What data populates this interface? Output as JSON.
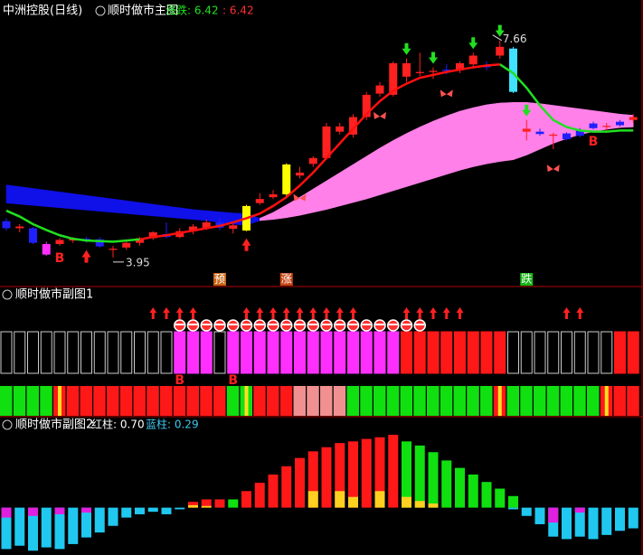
{
  "chart_data": [
    {
      "type": "candlestick",
      "title": "中洲控股(日线)",
      "subtitle": "顺时做市主图",
      "change_text": "涨跌: 6.42",
      "change_text2": ": 6.42",
      "ylim": [
        3.5,
        8.35
      ],
      "open": [
        4.57,
        4.45,
        4.45,
        4.18,
        4.18,
        4.24,
        4.27,
        4.26,
        4.1,
        4.12,
        4.2,
        4.28,
        4.35,
        4.3,
        4.4,
        4.45,
        4.55,
        4.44,
        4.41,
        4.88,
        4.98,
        5.03,
        5.35,
        5.55,
        5.65,
        6.1,
        6.05,
        6.35,
        6.75,
        6.73,
        7.27,
        7.1,
        7.12,
        7.14,
        7.15,
        7.25,
        7.22,
        7.4,
        7.52,
        6.15,
        6.1,
        6.05,
        6.07,
        6.13,
        6.24,
        6.18,
        6.27,
        6.3
      ],
      "high": [
        4.62,
        4.52,
        4.47,
        4.22,
        4.28,
        4.3,
        4.3,
        4.3,
        4.15,
        4.22,
        4.3,
        4.4,
        4.55,
        4.45,
        4.52,
        4.6,
        4.62,
        4.52,
        4.85,
        5.05,
        5.1,
        5.56,
        5.5,
        5.68,
        6.25,
        6.25,
        6.4,
        6.78,
        6.95,
        7.3,
        7.35,
        7.45,
        7.2,
        7.25,
        7.3,
        7.45,
        7.3,
        7.66,
        7.55,
        6.3,
        6.15,
        6.08,
        6.09,
        6.16,
        6.27,
        6.25,
        6.3,
        6.4
      ],
      "low": [
        4.41,
        4.38,
        4.18,
        3.98,
        4.15,
        4.2,
        4.2,
        4.12,
        3.95,
        4.08,
        4.15,
        4.25,
        4.28,
        4.28,
        4.35,
        4.42,
        4.42,
        4.36,
        4.4,
        4.85,
        4.95,
        5.0,
        5.3,
        5.5,
        5.62,
        6.05,
        6.0,
        6.3,
        6.7,
        6.7,
        6.95,
        7.05,
        7.0,
        7.08,
        7.1,
        7.2,
        7.15,
        7.35,
        6.76,
        5.95,
        6.03,
        5.8,
        5.95,
        6.0,
        6.14,
        6.12,
        6.19,
        6.25
      ],
      "close": [
        4.45,
        4.48,
        4.2,
        4.0,
        4.25,
        4.27,
        4.23,
        4.14,
        4.08,
        4.2,
        4.28,
        4.38,
        4.3,
        4.4,
        4.48,
        4.55,
        4.46,
        4.5,
        4.83,
        4.95,
        5.03,
        5.54,
        5.4,
        5.65,
        6.19,
        6.19,
        6.35,
        6.73,
        6.89,
        7.27,
        7.04,
        7.12,
        7.14,
        7.16,
        7.27,
        7.4,
        7.2,
        7.55,
        6.78,
        6.1,
        6.06,
        6.03,
        5.97,
        6.03,
        6.16,
        6.2,
        6.21,
        6.35
      ],
      "candle_colors": [
        "#2020ff",
        "#ff2020",
        "#2020ff",
        "#ff30ff",
        "#ff2020",
        "#ff2020",
        "#2020ff",
        "#2020ff",
        "#ff2020",
        "#ff2020",
        "#ff2020",
        "#ff2020",
        "#2020ff",
        "#ff2020",
        "#ff2020",
        "#ff2020",
        "#2020ff",
        "#ff2020",
        "#ffff00",
        "#ff2020",
        "#ff2020",
        "#ffff00",
        "#ff2020",
        "#ff2020",
        "#ff2020",
        "#ff2020",
        "#ff2020",
        "#ff2020",
        "#ff2020",
        "#ff2020",
        "#ff2020",
        "#ff2020",
        "#ff2020",
        "#2020ff",
        "#ff2020",
        "#ff2020",
        "#2020ff",
        "#ff2020",
        "#40e0ff",
        "#ff2020",
        "#2020ff",
        "#ff2020",
        "#2020ff",
        "#2020ff",
        "#2020ff",
        "#ff2020",
        "#2020ff",
        "#ff2020"
      ],
      "series": [
        {
          "name": "ma_green",
          "color": "#20e020",
          "values": [
            4.75,
            4.65,
            4.52,
            4.42,
            4.33,
            4.27,
            4.24,
            4.23,
            4.22,
            4.24,
            4.26,
            null,
            null,
            null,
            null,
            null,
            null,
            null,
            null,
            null,
            null,
            null,
            null,
            null,
            null,
            null,
            null,
            null,
            null,
            null,
            null,
            null,
            null,
            null,
            null,
            null,
            null,
            7.25,
            7.1,
            6.85,
            6.55,
            6.3,
            6.18,
            6.12,
            6.1,
            6.1,
            6.12,
            6.12
          ]
        },
        {
          "name": "ma_red",
          "color": "#ff1010",
          "values": [
            null,
            null,
            null,
            null,
            null,
            null,
            null,
            null,
            null,
            null,
            4.26,
            4.3,
            4.33,
            4.37,
            4.41,
            4.45,
            4.49,
            4.55,
            4.62,
            4.7,
            4.83,
            4.98,
            5.18,
            5.4,
            5.65,
            5.9,
            6.15,
            6.4,
            6.62,
            6.8,
            6.92,
            7.02,
            7.07,
            7.12,
            7.16,
            7.2,
            7.23,
            7.25,
            null,
            null,
            null,
            null,
            null,
            null,
            null,
            null,
            null,
            null
          ]
        }
      ],
      "cloud_upper": [
        5.19,
        5.16,
        5.13,
        5.1,
        5.07,
        5.04,
        5.01,
        4.98,
        4.95,
        4.92,
        4.89,
        4.86,
        4.83,
        4.8,
        4.77,
        4.75,
        4.73,
        4.71,
        4.7,
        4.62,
        4.72,
        4.85,
        4.98,
        5.12,
        5.26,
        5.4,
        5.54,
        5.68,
        5.82,
        5.95,
        6.07,
        6.18,
        6.28,
        6.37,
        6.45,
        6.51,
        6.56,
        6.59,
        6.6,
        6.6,
        6.58,
        6.55,
        6.52,
        6.49,
        6.46,
        6.43,
        6.4,
        6.38
      ],
      "cloud_lower": [
        4.88,
        4.86,
        4.84,
        4.82,
        4.8,
        4.78,
        4.76,
        4.74,
        4.72,
        4.7,
        4.68,
        4.66,
        4.64,
        4.62,
        4.6,
        4.58,
        4.55,
        4.52,
        4.5,
        4.58,
        4.6,
        4.63,
        4.67,
        4.72,
        4.77,
        4.83,
        4.89,
        4.95,
        5.02,
        5.09,
        5.16,
        5.23,
        5.3,
        5.37,
        5.44,
        5.5,
        5.55,
        5.59,
        5.62,
        5.7,
        5.8,
        5.9,
        5.98,
        6.05,
        6.1,
        6.14,
        6.17,
        6.18
      ],
      "cloud_colors": [
        "#1010e8",
        "#1010e8",
        "#1010e8",
        "#1010e8",
        "#1010e8",
        "#1010e8",
        "#1010e8",
        "#1010e8",
        "#1010e8",
        "#1010e8",
        "#1010e8",
        "#1010e8",
        "#1010e8",
        "#1010e8",
        "#1010e8",
        "#1010e8",
        "#1010e8",
        "#1010e8",
        "#1010e8",
        "#ff80e8",
        "#ff80e8",
        "#ff80e8",
        "#ff80e8",
        "#ff80e8",
        "#ff80e8",
        "#ff80e8",
        "#ff80e8",
        "#ff80e8",
        "#ff80e8",
        "#ff80e8",
        "#ff80e8",
        "#ff80e8",
        "#ff80e8",
        "#ff80e8",
        "#ff80e8",
        "#ff80e8",
        "#ff80e8",
        "#ff80e8",
        "#ff80e8",
        "#ff80e8",
        "#ff80e8",
        "#ff80e8",
        "#ff80e8",
        "#ff80e8",
        "#ff80e8",
        "#ff80e8",
        "#ff80e8",
        "#ff80e8"
      ],
      "high_label_day": 37,
      "low_label_day": 8,
      "red_arrow_days": [
        6,
        18
      ],
      "green_arrow_days": [
        30,
        32,
        35,
        37,
        39
      ],
      "butterfly_days": [
        22,
        28,
        33,
        41
      ],
      "b_labels": [
        {
          "day": 4,
          "text": "B"
        },
        {
          "day": 44,
          "text": "B"
        }
      ],
      "bottom_labels": [
        {
          "day": 16,
          "text": "预",
          "color": "#c86414"
        },
        {
          "day": 21,
          "text": "涨",
          "color": "#c84614"
        },
        {
          "day": 39,
          "text": "跌",
          "color": "#14b414"
        }
      ]
    },
    {
      "type": "signal_rows",
      "title": "顺时做市副图1",
      "top_states": [
        "hollow",
        "hollow",
        "hollow",
        "hollow",
        "hollow",
        "hollow",
        "hollow",
        "hollow",
        "hollow",
        "hollow",
        "hollow",
        "hollow",
        "hollow",
        "magenta",
        "magenta",
        "magenta",
        "hollow",
        "magenta",
        "magenta",
        "magenta",
        "magenta",
        "magenta",
        "magenta",
        "magenta",
        "magenta",
        "magenta",
        "magenta",
        "magenta",
        "magenta",
        "magenta",
        "red",
        "red",
        "red",
        "red",
        "red",
        "red",
        "red",
        "red",
        "hollow",
        "hollow",
        "hollow",
        "hollow",
        "hollow",
        "hollow",
        "hollow",
        "hollow",
        "red",
        "red"
      ],
      "bottom_states": [
        "green",
        "green",
        "green",
        "green",
        "stripe_red",
        "red",
        "red",
        "red",
        "red",
        "red",
        "red",
        "red",
        "red",
        "red",
        "red",
        "red",
        "red",
        "green",
        "stripe_green",
        "red",
        "red",
        "red",
        "pink",
        "pink",
        "pink",
        "pink",
        "green",
        "green",
        "green",
        "green",
        "green",
        "green",
        "green",
        "green",
        "green",
        "green",
        "green",
        "stripe_red",
        "green",
        "green",
        "green",
        "green",
        "green",
        "green",
        "green",
        "stripe_red",
        "red",
        "red"
      ],
      "state_colors": {
        "hollow": "#000000",
        "magenta": "#ff30ff",
        "red": "#ff1818",
        "green": "#10e010",
        "pink": "#f09090",
        "stripe_red": "#ff1818",
        "stripe_green": "#10e010"
      },
      "arrow_days": [
        11,
        12,
        13,
        14,
        18,
        19,
        20,
        21,
        22,
        23,
        24,
        25,
        26,
        30,
        31,
        32,
        33,
        34,
        42,
        43
      ],
      "ball_days": [
        13,
        14,
        15,
        16,
        17,
        18,
        19,
        20,
        21,
        22,
        23,
        24,
        25,
        26,
        27,
        28,
        29,
        30,
        31
      ],
      "b_labels": [
        {
          "day": 13,
          "text": "B"
        },
        {
          "day": 17,
          "text": "B"
        }
      ]
    },
    {
      "type": "bar",
      "title": "顺时做市副图2",
      "legend": [
        "红柱: 0.70",
        "蓝柱: 0.29"
      ],
      "ylim": [
        -0.55,
        1.0
      ],
      "series": [
        {
          "name": "红柱",
          "values": [
            0,
            0,
            0,
            0,
            0,
            0,
            0,
            0,
            0,
            0,
            0,
            0,
            0,
            0,
            0.07,
            0.1,
            0.1,
            0.1,
            0.2,
            0.3,
            0.4,
            0.5,
            0.6,
            0.68,
            0.73,
            0.78,
            0.8,
            0.83,
            0.85,
            0.88,
            0.8,
            0.75,
            0.67,
            0.57,
            0.48,
            0.4,
            0.31,
            0.23,
            0.14,
            0,
            0,
            0,
            0,
            0,
            0,
            0,
            0,
            0
          ],
          "colors": [
            "#ff1818",
            "#ff1818",
            "#ff1818",
            "#ff1818",
            "#ff1818",
            "#ff1818",
            "#ff1818",
            "#ff1818",
            "#ff1818",
            "#ff1818",
            "#ff1818",
            "#ff1818",
            "#ff1818",
            "#ff1818",
            "#ff1818",
            "#ff1818",
            "#ff1818",
            "#10e010",
            "#ff1818",
            "#ff1818",
            "#ff1818",
            "#ff1818",
            "#ff1818",
            "#ff1818",
            "#ff1818",
            "#ff1818",
            "#ff1818",
            "#ff1818",
            "#ff1818",
            "#ff1818",
            "#10e010",
            "#10e010",
            "#10e010",
            "#10e010",
            "#10e010",
            "#10e010",
            "#10e010",
            "#10e010",
            "#10e010",
            "#10e010",
            "#10e010",
            "#10e010",
            "#10e010",
            "#10e010",
            "#10e010",
            "#10e010",
            "#10e010",
            "#10e010"
          ]
        },
        {
          "name": "yellow",
          "color": "#ffd020",
          "values": [
            0,
            0,
            0,
            0,
            0,
            0,
            0,
            0,
            0,
            0,
            0,
            0,
            0,
            0,
            0.03,
            0.02,
            0,
            0,
            0,
            0,
            0,
            0,
            0,
            0.2,
            0,
            0.2,
            0.13,
            0,
            0.2,
            0,
            0.13,
            0.08,
            0.05,
            0,
            0,
            0,
            0,
            0,
            0,
            0,
            0,
            0,
            0,
            0,
            0,
            0,
            0,
            0
          ]
        },
        {
          "name": "蓝柱",
          "color": "#20c8f0",
          "values": [
            -0.5,
            -0.46,
            -0.52,
            -0.48,
            -0.5,
            -0.44,
            -0.36,
            -0.3,
            -0.22,
            -0.12,
            -0.08,
            -0.05,
            -0.08,
            -0.02,
            0,
            0,
            0,
            0,
            0,
            0,
            0,
            0,
            0,
            0,
            0,
            0,
            0,
            0,
            0,
            0,
            0,
            0,
            0,
            0,
            0,
            0,
            0,
            0,
            -0.02,
            -0.1,
            -0.2,
            -0.35,
            -0.38,
            -0.35,
            -0.38,
            -0.33,
            -0.28,
            -0.25
          ]
        },
        {
          "name": "magenta",
          "color": "#e020e0",
          "values": [
            -0.12,
            0,
            -0.1,
            0,
            -0.08,
            0,
            -0.06,
            0,
            0,
            0,
            0,
            0,
            0,
            0,
            0,
            0,
            0,
            0,
            0,
            0,
            0,
            0,
            0,
            0,
            0,
            0,
            0,
            0,
            0,
            0,
            0,
            0,
            0,
            0,
            0,
            0,
            0,
            0,
            0,
            0,
            0,
            -0.18,
            0,
            -0.06,
            0,
            0,
            0,
            0
          ]
        }
      ]
    }
  ]
}
